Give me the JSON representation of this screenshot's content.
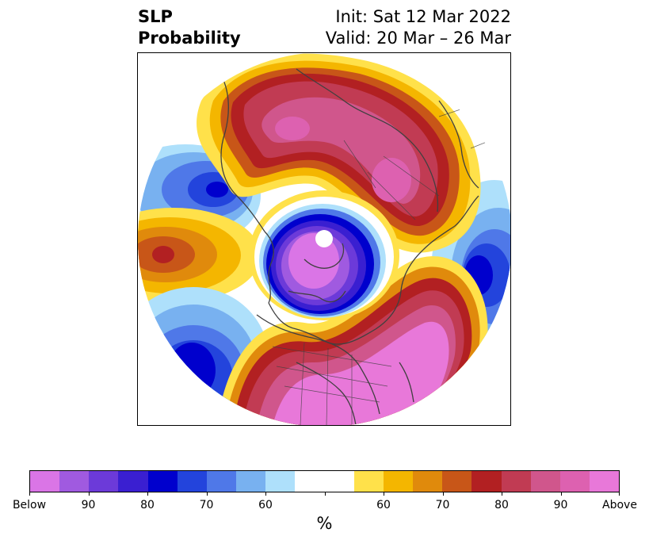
{
  "header": {
    "title_line1": "SLP",
    "title_line2": "Probability",
    "init_text": "Init: Sat 12 Mar 2022",
    "valid_text": "Valid: 20 Mar – 26 Mar"
  },
  "map": {
    "projection": "north-polar-stereographic",
    "coastline_color": "#404040",
    "anomaly_regions": [
      {
        "label": "Arctic / polar low",
        "category": "below",
        "peak_percent": "Below"
      },
      {
        "label": "North Atlantic / Scandinavia high",
        "category": "above",
        "peak_percent": "Above"
      },
      {
        "label": "North America / Pacific high",
        "category": "above",
        "peak_percent": "Above"
      },
      {
        "label": "North Pacific high",
        "category": "above",
        "peak_percent": "80"
      },
      {
        "label": "Eastern Siberia low",
        "category": "below",
        "peak_percent": "80"
      },
      {
        "label": "Gulf of Alaska low",
        "category": "below",
        "peak_percent": "80"
      }
    ]
  },
  "colorbar": {
    "unit": "%",
    "colors": [
      "#da75e6",
      "#a05ae0",
      "#6c3ad9",
      "#3a1fd1",
      "#0000cd",
      "#2344dc",
      "#4f78e8",
      "#78b1f0",
      "#aee0fb",
      "#ffffff",
      "#ffffff",
      "#ffe14a",
      "#f4b600",
      "#e08a0c",
      "#c85618",
      "#b22022",
      "#c13b53",
      "#d0568c",
      "#dd61b0",
      "#e878d9"
    ],
    "tick_labels": [
      "Below",
      "90",
      "80",
      "70",
      "60",
      "",
      "60",
      "70",
      "80",
      "90",
      "Above"
    ]
  }
}
